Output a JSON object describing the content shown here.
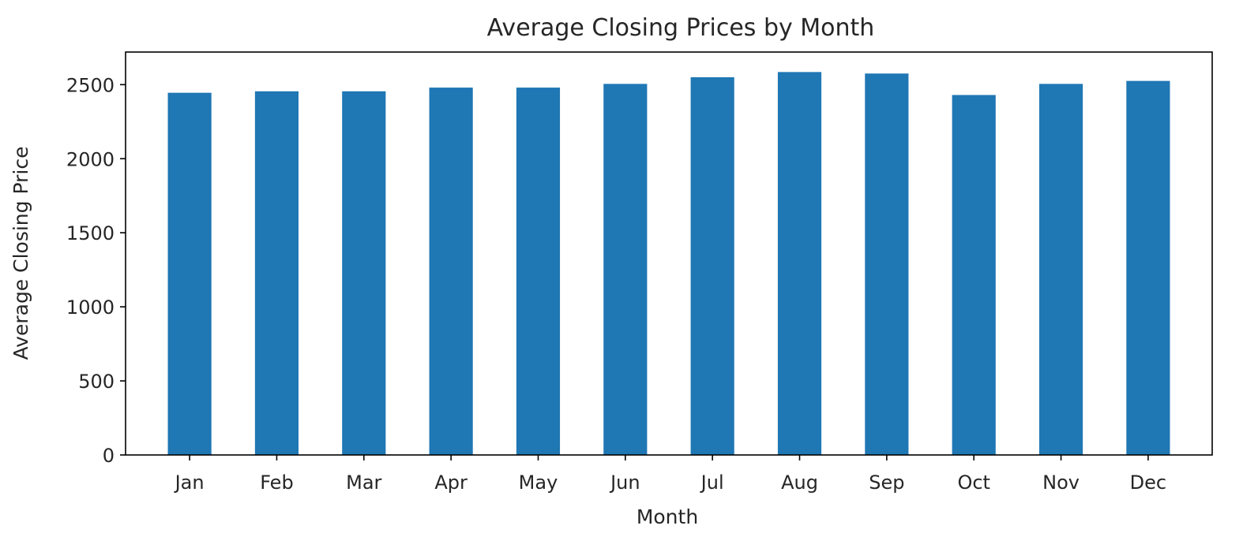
{
  "chart_data": {
    "type": "bar",
    "title": "Average Closing Prices by Month",
    "xlabel": "Month",
    "ylabel": "Average Closing Price",
    "categories": [
      "Jan",
      "Feb",
      "Mar",
      "Apr",
      "May",
      "Jun",
      "Jul",
      "Aug",
      "Sep",
      "Oct",
      "Nov",
      "Dec"
    ],
    "values": [
      2445,
      2455,
      2455,
      2480,
      2480,
      2505,
      2550,
      2585,
      2575,
      2430,
      2505,
      2525
    ],
    "ylim": [
      0,
      2720
    ],
    "yticks": [
      0,
      500,
      1000,
      1500,
      2000,
      2500
    ],
    "bar_color": "#1f77b4",
    "grid": false,
    "legend": "none"
  }
}
